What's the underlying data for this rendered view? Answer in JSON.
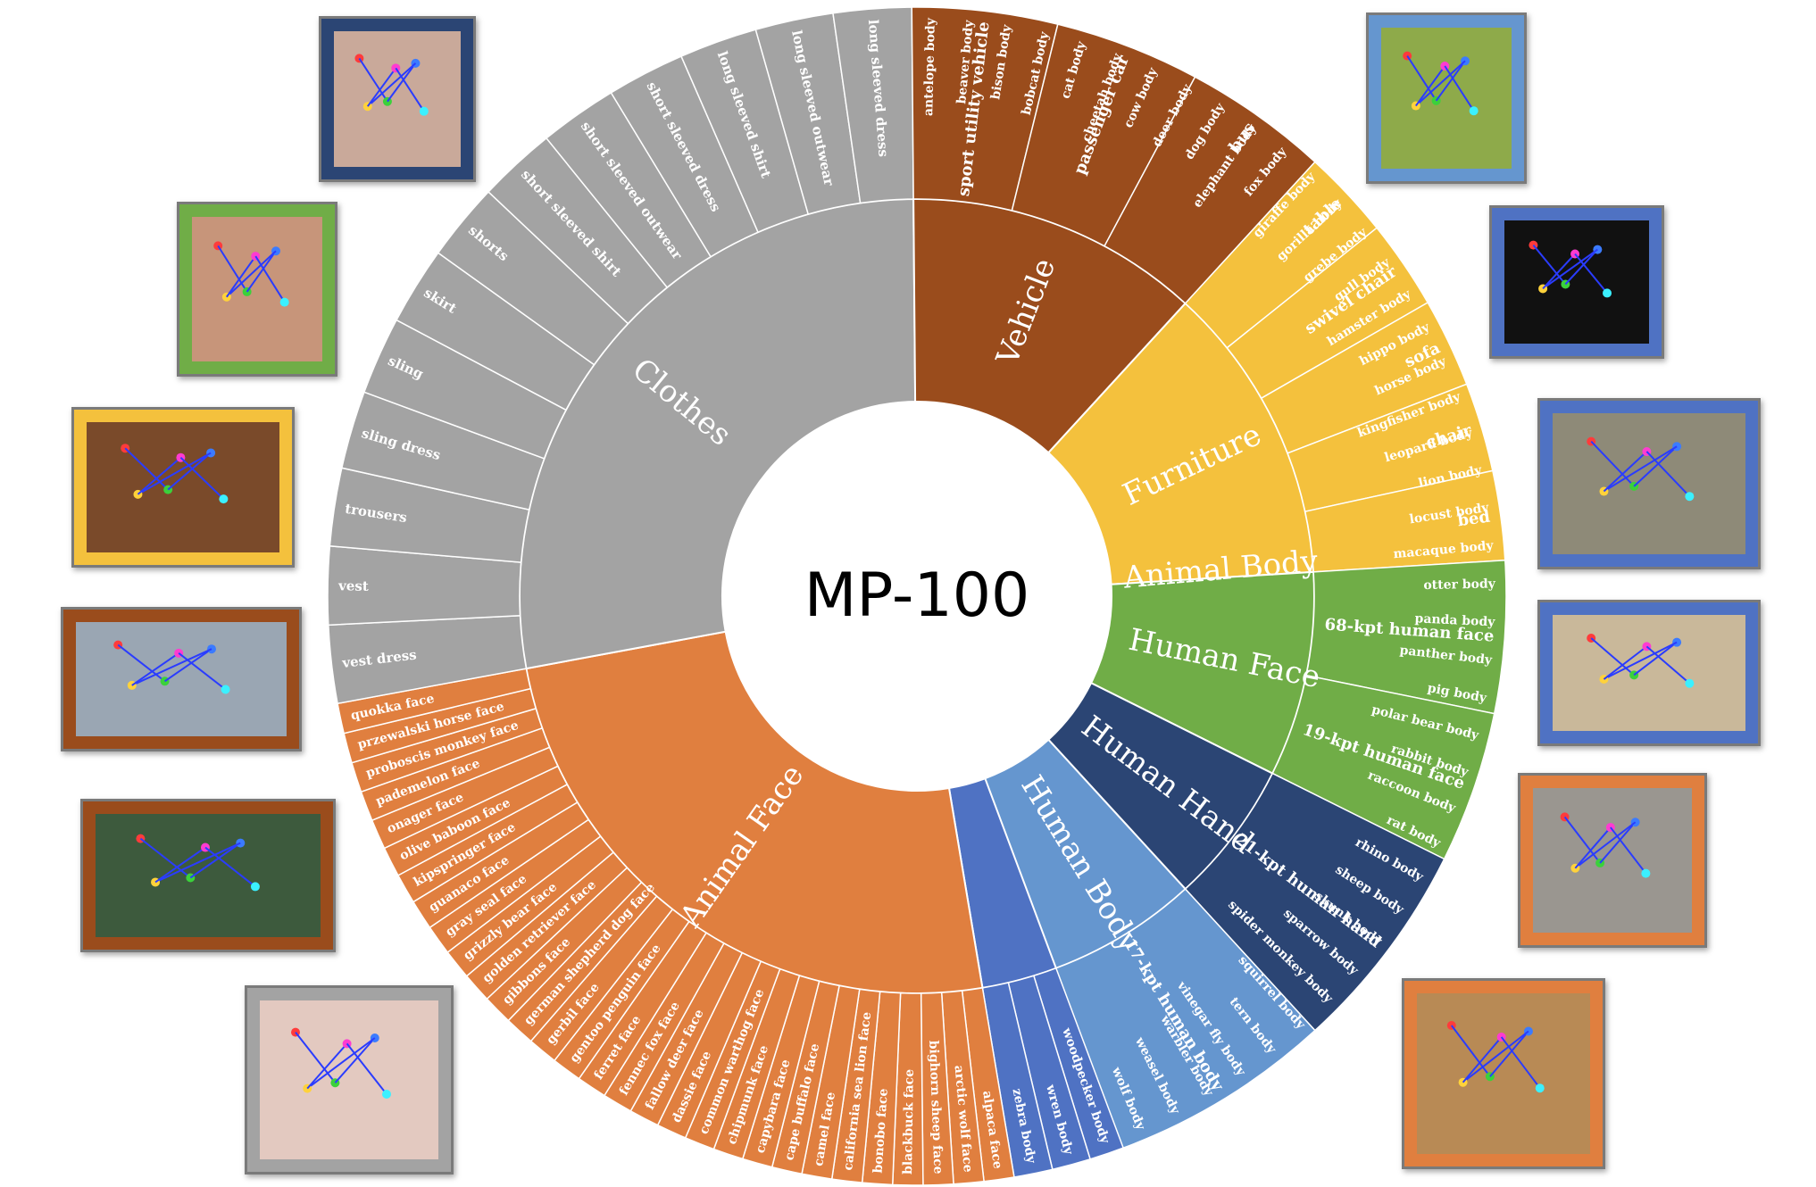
{
  "title": "MP-100",
  "colors": {
    "human_body": "#6596cf",
    "human_hand": "#2b4574",
    "human_face": "#70ad47",
    "furniture": "#f4c13d",
    "vehicle": "#9a4c1c",
    "clothes": "#a3a3a3",
    "animal_face": "#e07f3f",
    "animal_body": "#4f72c3"
  },
  "supercategories": [
    {
      "name": "Animal Body",
      "color": "#4f72c3",
      "start": -0.5,
      "end": 170.5,
      "items": [
        "antelope body",
        "beaver body",
        "bison body",
        "bobcat body",
        "cat body",
        "cheetah body",
        "cow body",
        "deer body",
        "dog body",
        "elephant body",
        "fox body",
        "giraffe body",
        "gorilla body",
        "grebe body",
        "gull body",
        "hamster body",
        "hippo body",
        "horse body",
        "kingfisher body",
        "leopard body",
        "lion body",
        "locust body",
        "macaque body",
        "otter body",
        "panda body",
        "panther body",
        "pig body",
        "polar bear body",
        "rabbit body",
        "raccoon body",
        "rat body",
        "rhino body",
        "sheep body",
        "skunk body",
        "sparrow body",
        "spider monkey body",
        "squirrel body",
        "tern body",
        "vinegar fly body",
        "warbler body",
        "weasel body",
        "wolf body",
        "woodpecker body",
        "wren body",
        "zebra body"
      ]
    },
    {
      "name": "Animal Face",
      "color": "#e07f3f",
      "start": 170.5,
      "end": 259.5,
      "items": [
        "alpaca face",
        "arctic wolf face",
        "bighorn sheep face",
        "blackbuck face",
        "bonobo face",
        "california sea lion face",
        "camel face",
        "cape buffalo face",
        "capybara face",
        "chipmunk face",
        "common warthog face",
        "dassie face",
        "fallow deer face",
        "fennec fox face",
        "ferret face",
        "gentoo penguin face",
        "gerbil face",
        "german shepherd dog face",
        "gibbons face",
        "golden retriever face",
        "grizzly bear face",
        "gray seal face",
        "guanaco face",
        "kipspringer face",
        "olive baboon face",
        "onager face",
        "pademelon face",
        "proboscis monkey face",
        "przewalski horse face",
        "quokka face"
      ]
    },
    {
      "name": "Clothes",
      "color": "#a3a3a3",
      "start": 259.5,
      "end": 359.5,
      "items": [
        "vest dress",
        "vest",
        "trousers",
        "sling dress",
        "sling",
        "skirt",
        "shorts",
        "short sleeved shirt",
        "short sleeved outwear",
        "short sleeved dress",
        "long sleeved shirt",
        "long sleeved outwear",
        "long sleeved dress"
      ]
    },
    {
      "name": "Vehicle",
      "color": "#9a4c1c",
      "start": 359.5,
      "end": 402.5,
      "items": [
        "sport utility vehicle",
        "passenger car",
        "bus"
      ]
    },
    {
      "name": "Furniture",
      "color": "#f4c13d",
      "start": 402.5,
      "end": 446.5,
      "items": [
        "table",
        "swivel chair",
        "sofa",
        "chair",
        "bed"
      ]
    },
    {
      "name": "Human Face",
      "color": "#70ad47",
      "start": 446.5,
      "end": 476.5,
      "items": [
        "68-kpt human face",
        "19-kpt human face"
      ]
    },
    {
      "name": "Human Hand",
      "color": "#2b4574",
      "start": 476.5,
      "end": 497.5,
      "items": [
        "21-kpt human hand"
      ]
    },
    {
      "name": "Human Body",
      "color": "#6596cf",
      "start": 497.5,
      "end": 519.5,
      "items": [
        "17-kpt human body"
      ]
    }
  ],
  "thumbnails": [
    {
      "name": "thumb-hand-photo",
      "frame": "#2b4574",
      "bg": "#c9a99a"
    },
    {
      "name": "thumb-face-photo",
      "frame": "#70ad47",
      "bg": "#c7957a"
    },
    {
      "name": "thumb-table-photo",
      "frame": "#f4c13d",
      "bg": "#7a4a2a"
    },
    {
      "name": "thumb-car-photo",
      "frame": "#9a4c1c",
      "bg": "#9aa6b3"
    },
    {
      "name": "thumb-bus-photo",
      "frame": "#9a4c1c",
      "bg": "#3d5a3d"
    },
    {
      "name": "thumb-clothes-photo",
      "frame": "#a3a3a3",
      "bg": "#e3c9c0"
    },
    {
      "name": "thumb-child-photo",
      "frame": "#6596cf",
      "bg": "#8eaa4a"
    },
    {
      "name": "thumb-fly-photo",
      "frame": "#4f72c3",
      "bg": "#111111"
    },
    {
      "name": "thumb-rhino-photo",
      "frame": "#4f72c3",
      "bg": "#8e8a78"
    },
    {
      "name": "thumb-bird-photo",
      "frame": "#4f72c3",
      "bg": "#c9b89a"
    },
    {
      "name": "thumb-wolf-face-photo",
      "frame": "#e07f3f",
      "bg": "#9a9690"
    },
    {
      "name": "thumb-alpaca-photo",
      "frame": "#e07f3f",
      "bg": "#b88a55"
    }
  ]
}
